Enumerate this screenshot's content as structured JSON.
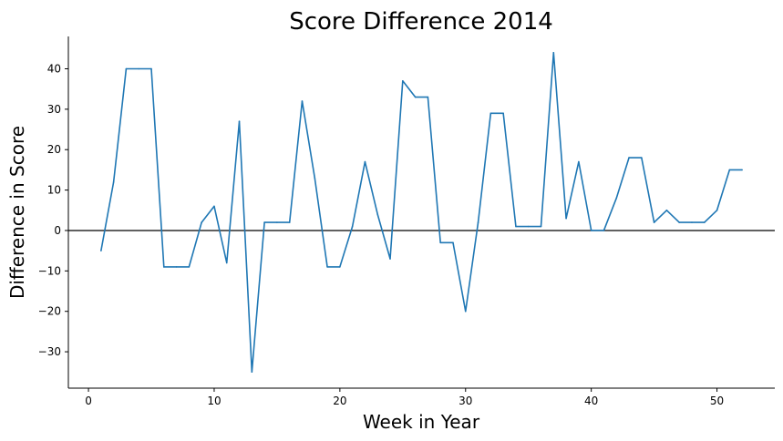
{
  "chart_data": {
    "type": "line",
    "title": "Score Difference 2014",
    "xlabel": "Week in Year",
    "ylabel": "Difference in Score",
    "xlim": [
      -1.6,
      54.6
    ],
    "ylim": [
      -39,
      48
    ],
    "xticks": [
      0,
      10,
      20,
      30,
      40,
      50
    ],
    "yticks": [
      -30,
      -20,
      -10,
      0,
      10,
      20,
      30,
      40
    ],
    "xtick_labels": [
      "0",
      "10",
      "20",
      "30",
      "40",
      "50"
    ],
    "ytick_labels": [
      "−30",
      "−20",
      "−10",
      "0",
      "10",
      "20",
      "30",
      "40"
    ],
    "reference_line": 0,
    "grid": false,
    "series": [
      {
        "color": "#1f77b4",
        "x": [
          1,
          2,
          3,
          4,
          5,
          6,
          7,
          8,
          9,
          10,
          11,
          12,
          13,
          14,
          15,
          16,
          17,
          18,
          19,
          20,
          21,
          22,
          23,
          24,
          25,
          26,
          27,
          28,
          29,
          30,
          31,
          32,
          33,
          34,
          35,
          36,
          37,
          38,
          39,
          40,
          41,
          42,
          43,
          44,
          45,
          46,
          47,
          48,
          49,
          50,
          51,
          52
        ],
        "y": [
          -5,
          12,
          40,
          40,
          40,
          -9,
          -9,
          -9,
          2,
          6,
          -8,
          27,
          -35,
          2,
          2,
          2,
          32,
          13,
          -9,
          -9,
          1,
          17,
          4,
          -7,
          37,
          33,
          33,
          -3,
          -3,
          -20,
          2,
          29,
          29,
          1,
          1,
          1,
          44,
          3,
          17,
          0,
          0,
          8,
          18,
          18,
          2,
          5,
          2,
          2,
          2,
          5,
          15,
          15
        ]
      }
    ]
  }
}
